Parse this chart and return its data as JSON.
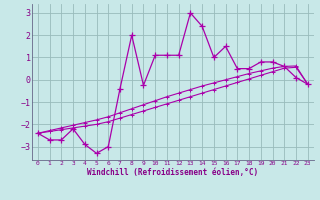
{
  "xlabel": "Windchill (Refroidissement éolien,°C)",
  "bg_color": "#c8e8e8",
  "line_color": "#aa00aa",
  "grid_color": "#99bbbb",
  "x_data": [
    0,
    1,
    2,
    3,
    4,
    5,
    6,
    7,
    8,
    9,
    10,
    11,
    12,
    13,
    14,
    15,
    16,
    17,
    18,
    19,
    20,
    21,
    22,
    23
  ],
  "y_main": [
    -2.4,
    -2.7,
    -2.7,
    -2.2,
    -2.9,
    -3.3,
    -3.0,
    -0.4,
    2.0,
    -0.25,
    1.1,
    1.1,
    1.1,
    3.0,
    2.4,
    1.0,
    1.5,
    0.5,
    0.5,
    0.8,
    0.8,
    0.6,
    0.1,
    -0.2
  ],
  "y_line1": [
    -2.4,
    -2.32,
    -2.24,
    -2.16,
    -2.08,
    -2.0,
    -1.88,
    -1.72,
    -1.56,
    -1.4,
    -1.24,
    -1.08,
    -0.92,
    -0.76,
    -0.6,
    -0.44,
    -0.28,
    -0.12,
    0.04,
    0.2,
    0.36,
    0.52,
    0.56,
    -0.2
  ],
  "y_line2": [
    -2.4,
    -2.28,
    -2.16,
    -2.04,
    -1.92,
    -1.8,
    -1.66,
    -1.48,
    -1.3,
    -1.12,
    -0.94,
    -0.76,
    -0.6,
    -0.44,
    -0.28,
    -0.14,
    0.0,
    0.14,
    0.28,
    0.4,
    0.52,
    0.6,
    0.62,
    -0.2
  ],
  "ylim": [
    -3.6,
    3.4
  ],
  "xlim": [
    -0.5,
    23.5
  ],
  "yticks": [
    -3,
    -2,
    -1,
    0,
    1,
    2,
    3
  ],
  "xticks": [
    0,
    1,
    2,
    3,
    4,
    5,
    6,
    7,
    8,
    9,
    10,
    11,
    12,
    13,
    14,
    15,
    16,
    17,
    18,
    19,
    20,
    21,
    22,
    23
  ]
}
